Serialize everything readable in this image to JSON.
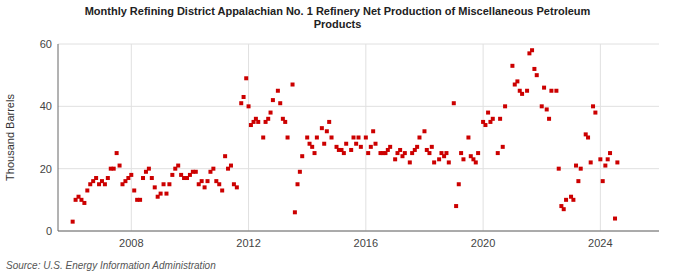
{
  "chart_data": {
    "type": "scatter",
    "title": "Monthly Refining District Appalachian No. 1 Refinery Net Production of Miscellaneous Petroleum\nProducts",
    "ylabel": "Thousand Barrels",
    "annotations": [
      "Source: U.S. Energy Information Administration"
    ],
    "color": "#cc0000",
    "marker": "square",
    "grid": true,
    "xlim": [
      2005.5,
      2026.0
    ],
    "xticks": [
      2008,
      2012,
      2016,
      2020,
      2024
    ],
    "ylim": [
      0,
      60
    ],
    "yticks": [
      0,
      20,
      40,
      60
    ],
    "x": [
      2006.0,
      2006.1,
      2006.2,
      2006.3,
      2006.4,
      2006.5,
      2006.6,
      2006.7,
      2006.8,
      2006.9,
      2007.0,
      2007.1,
      2007.2,
      2007.3,
      2007.4,
      2007.5,
      2007.6,
      2007.7,
      2007.8,
      2007.9,
      2008.0,
      2008.1,
      2008.2,
      2008.3,
      2008.4,
      2008.5,
      2008.6,
      2008.7,
      2008.8,
      2008.9,
      2009.0,
      2009.1,
      2009.2,
      2009.3,
      2009.4,
      2009.5,
      2009.6,
      2009.7,
      2009.8,
      2009.9,
      2010.0,
      2010.1,
      2010.2,
      2010.3,
      2010.4,
      2010.5,
      2010.6,
      2010.7,
      2010.8,
      2010.9,
      2011.0,
      2011.1,
      2011.2,
      2011.3,
      2011.4,
      2011.5,
      2011.6,
      2011.75,
      2011.83,
      2011.92,
      2012.0,
      2012.08,
      2012.17,
      2012.25,
      2012.33,
      2012.5,
      2012.58,
      2012.67,
      2012.75,
      2012.83,
      2013.0,
      2013.08,
      2013.17,
      2013.25,
      2013.33,
      2013.5,
      2013.58,
      2013.67,
      2013.75,
      2013.83,
      2014.0,
      2014.08,
      2014.17,
      2014.25,
      2014.33,
      2014.5,
      2014.58,
      2014.67,
      2014.75,
      2014.83,
      2015.0,
      2015.08,
      2015.17,
      2015.25,
      2015.33,
      2015.5,
      2015.58,
      2015.67,
      2015.75,
      2015.83,
      2016.0,
      2016.08,
      2016.17,
      2016.25,
      2016.33,
      2016.5,
      2016.58,
      2016.67,
      2016.75,
      2016.83,
      2017.0,
      2017.08,
      2017.17,
      2017.25,
      2017.33,
      2017.5,
      2017.58,
      2017.67,
      2017.75,
      2017.83,
      2018.0,
      2018.08,
      2018.17,
      2018.25,
      2018.33,
      2018.5,
      2018.58,
      2018.67,
      2018.75,
      2018.83,
      2019.0,
      2019.08,
      2019.17,
      2019.25,
      2019.33,
      2019.5,
      2019.58,
      2019.67,
      2019.75,
      2019.83,
      2020.0,
      2020.08,
      2020.17,
      2020.25,
      2020.33,
      2020.5,
      2020.58,
      2020.67,
      2020.75,
      2021.0,
      2021.08,
      2021.17,
      2021.25,
      2021.33,
      2021.5,
      2021.58,
      2021.67,
      2021.75,
      2021.83,
      2022.0,
      2022.08,
      2022.17,
      2022.25,
      2022.33,
      2022.5,
      2022.58,
      2022.67,
      2022.75,
      2022.83,
      2023.0,
      2023.08,
      2023.17,
      2023.25,
      2023.33,
      2023.5,
      2023.58,
      2023.67,
      2023.75,
      2023.83,
      2024.0,
      2024.08,
      2024.17,
      2024.25,
      2024.33,
      2024.5,
      2024.58
    ],
    "values": [
      3,
      10,
      11,
      10,
      9,
      13,
      15,
      16,
      17,
      15,
      16,
      15,
      17,
      20,
      20,
      25,
      21,
      15,
      16,
      17,
      18,
      13,
      10,
      10,
      17,
      19,
      20,
      17,
      14,
      11,
      12,
      15,
      12,
      15,
      18,
      20,
      21,
      18,
      17,
      17,
      18,
      19,
      19,
      15,
      16,
      14,
      16,
      19,
      20,
      16,
      15,
      13,
      24,
      20,
      21,
      15,
      14,
      41,
      43,
      49,
      40,
      34,
      35,
      36,
      35,
      30,
      35,
      36,
      38,
      42,
      45,
      41,
      36,
      35,
      30,
      47,
      6,
      15,
      19,
      24,
      30,
      28,
      27,
      25,
      30,
      33,
      28,
      32,
      35,
      30,
      27,
      26,
      26,
      25,
      28,
      26,
      30,
      28,
      30,
      27,
      30,
      25,
      27,
      32,
      28,
      25,
      25,
      25,
      26,
      27,
      23,
      25,
      26,
      24,
      25,
      22,
      25,
      26,
      27,
      30,
      32,
      26,
      25,
      27,
      22,
      23,
      25,
      24,
      25,
      22,
      41,
      8,
      15,
      25,
      23,
      30,
      24,
      23,
      22,
      25,
      35,
      34,
      38,
      35,
      36,
      25,
      36,
      27,
      40,
      53,
      47,
      48,
      45,
      44,
      45,
      57,
      58,
      52,
      50,
      40,
      46,
      39,
      36,
      45,
      45,
      20,
      8,
      7,
      10,
      11,
      10,
      21,
      16,
      20,
      31,
      30,
      22,
      40,
      38,
      23,
      16,
      21,
      23,
      25,
      4,
      22
    ]
  }
}
